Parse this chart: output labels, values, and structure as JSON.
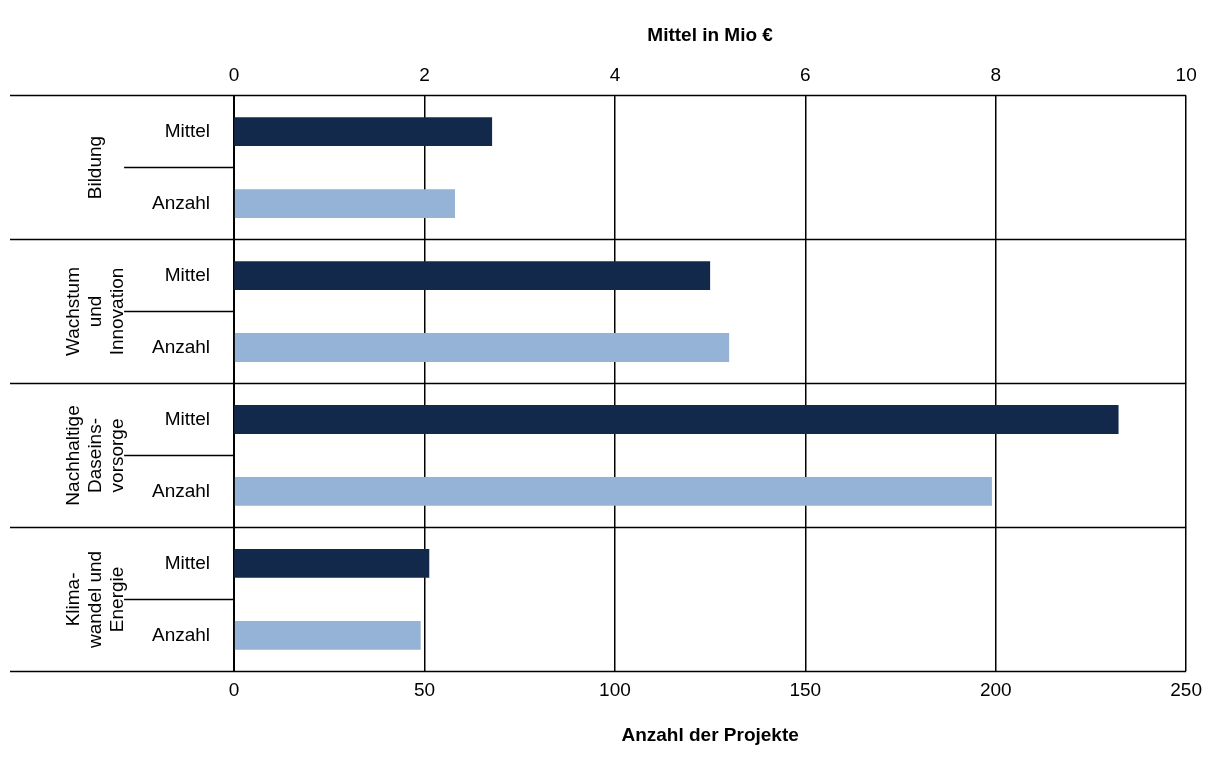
{
  "chart_data": {
    "type": "bar",
    "orientation": "horizontal",
    "xlabel": "Anzahl der Projekte",
    "x2label": "Mittel in Mio €",
    "categories": [
      "Mittel",
      "Anzahl",
      "Mittel",
      "Anzahl",
      "Mittel",
      "Anzahl",
      "Mittel",
      "Anzahl"
    ],
    "series": [
      {
        "color": "#13294b",
        "axis": "x2",
        "values": [
          2.71,
          null,
          5.0,
          null,
          9.29,
          null,
          2.05,
          null
        ]
      },
      {
        "color": "#95b3d7",
        "values": [
          null,
          58,
          null,
          130,
          null,
          199,
          null,
          49
        ]
      }
    ],
    "xlim": [
      0,
      250
    ],
    "xticks": [
      0,
      50,
      100,
      150,
      200,
      250
    ],
    "x2lim": [
      0,
      10
    ],
    "x2ticks": [
      0,
      2,
      4,
      6,
      8,
      10
    ],
    "grid": "x",
    "legend": false,
    "annotations": [
      "Bildung",
      "Wachstum\nund\nInnovation",
      "Nachhaltige\nDaseins-\nvorsorge",
      "Klima-\nwandel und\nEnergie"
    ]
  }
}
